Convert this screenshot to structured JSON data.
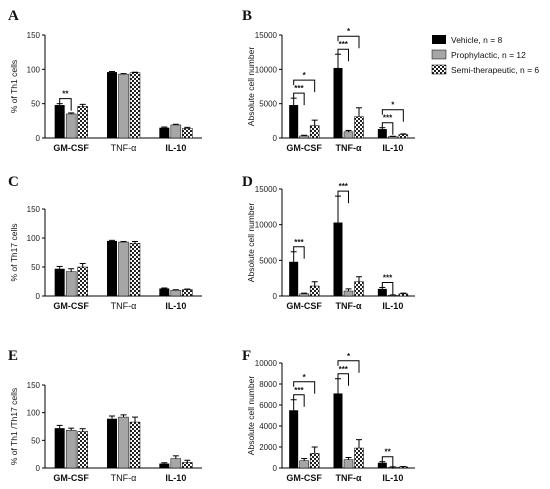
{
  "legend": {
    "items": [
      {
        "label": "Vehicle, n = 8",
        "pattern": "black"
      },
      {
        "label": "Prophylactic, n = 12",
        "pattern": "gray"
      },
      {
        "label": "Semi-therapeutic, n = 6",
        "pattern": "check"
      }
    ]
  },
  "colors": {
    "vehicle": "#000000",
    "prophylactic": "#a6a6a6",
    "semi": "#ffffff"
  },
  "chart_data": [
    {
      "panel": "A",
      "type": "bar",
      "ylabel": "% of Th1 cells",
      "ylim": [
        0,
        150
      ],
      "yticks": [
        0,
        50,
        100,
        150
      ],
      "categories": [
        "GM-CSF",
        "TNF-α",
        "IL-10"
      ],
      "bold_categories": [
        true,
        false,
        true
      ],
      "series": [
        {
          "name": "Vehicle, n = 8",
          "values": [
            48,
            96,
            15
          ],
          "errors": [
            2,
            0.8,
            1
          ]
        },
        {
          "name": "Prophylactic, n = 12",
          "values": [
            35,
            93,
            19
          ],
          "errors": [
            1.5,
            0.8,
            1
          ]
        },
        {
          "name": "Semi-therapeutic, n = 6",
          "values": [
            46,
            95,
            14
          ],
          "errors": [
            3,
            0.8,
            1.5
          ]
        }
      ],
      "sig": [
        {
          "cat": 0,
          "from": 0,
          "to": 1,
          "label": "**",
          "level": 0
        }
      ]
    },
    {
      "panel": "B",
      "type": "bar",
      "ylabel": "Absolute cell number",
      "ylim": [
        0,
        15000
      ],
      "yticks": [
        0,
        5000,
        10000,
        15000
      ],
      "categories": [
        "GM-CSF",
        "TNF-α",
        "IL-10"
      ],
      "bold_categories": [
        true,
        true,
        true
      ],
      "series": [
        {
          "name": "Vehicle, n = 8",
          "values": [
            4800,
            10200,
            1300
          ],
          "errors": [
            1000,
            2000,
            200
          ]
        },
        {
          "name": "Prophylactic, n = 12",
          "values": [
            300,
            900,
            200
          ],
          "errors": [
            100,
            200,
            50
          ]
        },
        {
          "name": "Semi-therapeutic, n = 6",
          "values": [
            1800,
            3100,
            500
          ],
          "errors": [
            800,
            1300,
            100
          ]
        }
      ],
      "sig": [
        {
          "cat": 0,
          "from": 0,
          "to": 1,
          "label": "***",
          "level": 0
        },
        {
          "cat": 0,
          "from": 0,
          "to": 2,
          "label": "*",
          "level": 1
        },
        {
          "cat": 1,
          "from": 0,
          "to": 1,
          "label": "***",
          "level": 0
        },
        {
          "cat": 1,
          "from": 0,
          "to": 2,
          "label": "*",
          "level": 1
        },
        {
          "cat": 2,
          "from": 0,
          "to": 1,
          "label": "***",
          "level": 0
        },
        {
          "cat": 2,
          "from": 0,
          "to": 2,
          "label": "*",
          "level": 1
        }
      ]
    },
    {
      "panel": "C",
      "type": "bar",
      "ylabel": "% of Th17 cells",
      "ylim": [
        0,
        150
      ],
      "yticks": [
        0,
        50,
        100,
        150
      ],
      "categories": [
        "GM-CSF",
        "TNF-α",
        "IL-10"
      ],
      "bold_categories": [
        true,
        false,
        true
      ],
      "series": [
        {
          "name": "Vehicle, n = 8",
          "values": [
            47,
            95,
            13
          ],
          "errors": [
            4,
            1,
            0.8
          ]
        },
        {
          "name": "Prophylactic, n = 12",
          "values": [
            42,
            93,
            10
          ],
          "errors": [
            5,
            1,
            0.8
          ]
        },
        {
          "name": "Semi-therapeutic, n = 6",
          "values": [
            50,
            91,
            11
          ],
          "errors": [
            6,
            3,
            1
          ]
        }
      ],
      "sig": []
    },
    {
      "panel": "D",
      "type": "bar",
      "ylabel": "Absolute cell number",
      "ylim": [
        0,
        15000
      ],
      "yticks": [
        0,
        5000,
        10000,
        15000
      ],
      "categories": [
        "GM-CSF",
        "TNF-α",
        "IL-10"
      ],
      "bold_categories": [
        true,
        true,
        true
      ],
      "series": [
        {
          "name": "Vehicle, n = 8",
          "values": [
            4800,
            10300,
            1000
          ],
          "errors": [
            1400,
            3700,
            200
          ]
        },
        {
          "name": "Prophylactic, n = 12",
          "values": [
            300,
            700,
            100
          ],
          "errors": [
            100,
            300,
            50
          ]
        },
        {
          "name": "Semi-therapeutic, n = 6",
          "values": [
            1400,
            2000,
            300
          ],
          "errors": [
            600,
            700,
            100
          ]
        }
      ],
      "sig": [
        {
          "cat": 0,
          "from": 0,
          "to": 1,
          "label": "***",
          "level": 0
        },
        {
          "cat": 1,
          "from": 0,
          "to": 1,
          "label": "***",
          "level": 0
        },
        {
          "cat": 2,
          "from": 0,
          "to": 1,
          "label": "***",
          "level": 0
        }
      ]
    },
    {
      "panel": "E",
      "type": "bar",
      "ylabel": "% of Th1 /Th17 cells",
      "ylim": [
        0,
        150
      ],
      "yticks": [
        0,
        50,
        100,
        150
      ],
      "categories": [
        "GM-CSF",
        "TNF-α",
        "IL-10"
      ],
      "bold_categories": [
        true,
        false,
        true
      ],
      "series": [
        {
          "name": "Vehicle, n = 8",
          "values": [
            72,
            89,
            8
          ],
          "errors": [
            5,
            5,
            1.5
          ]
        },
        {
          "name": "Prophylactic, n = 12",
          "values": [
            68,
            92,
            17
          ],
          "errors": [
            4,
            4,
            5
          ]
        },
        {
          "name": "Semi-therapeutic, n = 6",
          "values": [
            66,
            83,
            10
          ],
          "errors": [
            5,
            9,
            4
          ]
        }
      ],
      "sig": []
    },
    {
      "panel": "F",
      "type": "bar",
      "ylabel": "Absolute cell number",
      "ylim": [
        0,
        10000
      ],
      "yticks": [
        0,
        2000,
        4000,
        6000,
        8000,
        10000
      ],
      "categories": [
        "GM-CSF",
        "TNF-α",
        "IL-10"
      ],
      "bold_categories": [
        true,
        true,
        true
      ],
      "series": [
        {
          "name": "Vehicle, n = 8",
          "values": [
            5500,
            7100,
            500
          ],
          "errors": [
            1000,
            1400,
            100
          ]
        },
        {
          "name": "Prophylactic, n = 12",
          "values": [
            700,
            800,
            80
          ],
          "errors": [
            200,
            200,
            30
          ]
        },
        {
          "name": "Semi-therapeutic, n = 6",
          "values": [
            1400,
            1900,
            100
          ],
          "errors": [
            600,
            800,
            40
          ]
        }
      ],
      "sig": [
        {
          "cat": 0,
          "from": 0,
          "to": 1,
          "label": "***",
          "level": 0
        },
        {
          "cat": 0,
          "from": 0,
          "to": 2,
          "label": "*",
          "level": 1
        },
        {
          "cat": 1,
          "from": 0,
          "to": 1,
          "label": "***",
          "level": 0
        },
        {
          "cat": 1,
          "from": 0,
          "to": 2,
          "label": "*",
          "level": 1
        },
        {
          "cat": 2,
          "from": 0,
          "to": 1,
          "label": "**",
          "level": 0
        }
      ]
    }
  ]
}
